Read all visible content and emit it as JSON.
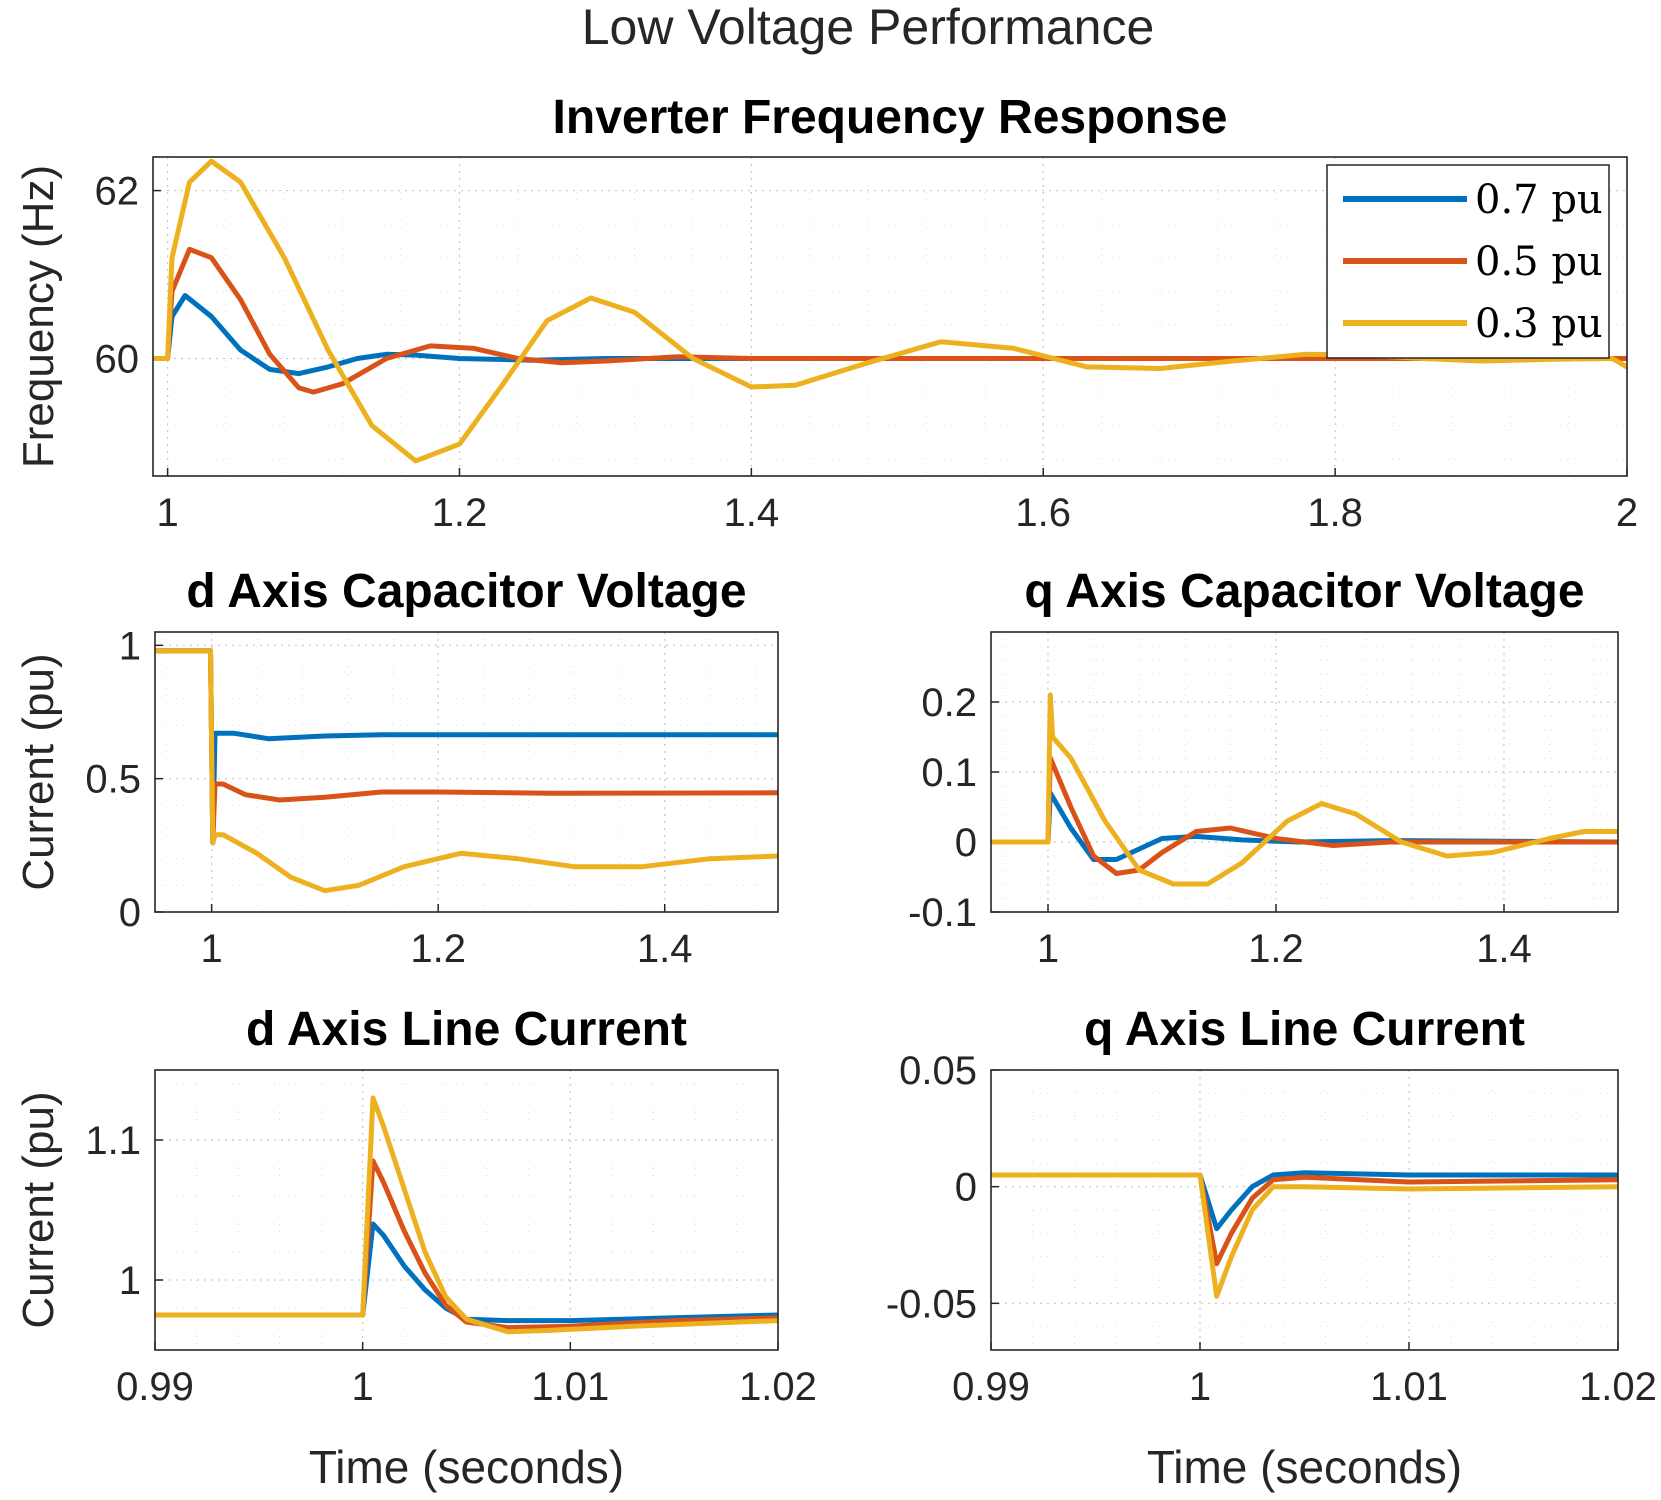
{
  "figure_title": "Low Voltage Performance",
  "colors": {
    "blue": "#0072BD",
    "orange": "#D95319",
    "yellow": "#EDB120"
  },
  "chart_data": [
    {
      "id": "freq",
      "type": "line",
      "title": "Inverter Frequency Response",
      "xlabel": "",
      "ylabel": "Frequency (Hz)",
      "xlim": [
        0.99,
        2.0
      ],
      "ylim": [
        58.6,
        62.4
      ],
      "xticks": [
        1,
        1.2,
        1.4,
        1.6,
        1.8,
        2
      ],
      "xtick_labels": [
        "1",
        "1.2",
        "1.4",
        "1.6",
        "1.8",
        "2"
      ],
      "yticks": [
        60,
        62
      ],
      "ytick_labels": [
        "60",
        "62"
      ],
      "legend": {
        "position": "top-right",
        "entries": [
          "0.7 pu",
          "0.5 pu",
          "0.3 pu"
        ]
      },
      "series": [
        {
          "name": "0.7 pu",
          "color": "blue",
          "points": [
            [
              0.99,
              60.0
            ],
            [
              1.0,
              60.0
            ],
            [
              1.003,
              60.5
            ],
            [
              1.012,
              60.75
            ],
            [
              1.03,
              60.5
            ],
            [
              1.05,
              60.1
            ],
            [
              1.07,
              59.87
            ],
            [
              1.09,
              59.82
            ],
            [
              1.11,
              59.9
            ],
            [
              1.13,
              60.0
            ],
            [
              1.15,
              60.05
            ],
            [
              1.17,
              60.04
            ],
            [
              1.2,
              60.0
            ],
            [
              1.25,
              59.98
            ],
            [
              1.3,
              60.0
            ],
            [
              1.4,
              60.0
            ],
            [
              2.0,
              60.0
            ]
          ]
        },
        {
          "name": "0.5 pu",
          "color": "orange",
          "points": [
            [
              0.99,
              60.0
            ],
            [
              1.0,
              60.0
            ],
            [
              1.003,
              60.8
            ],
            [
              1.015,
              61.3
            ],
            [
              1.03,
              61.2
            ],
            [
              1.05,
              60.7
            ],
            [
              1.07,
              60.05
            ],
            [
              1.09,
              59.65
            ],
            [
              1.1,
              59.6
            ],
            [
              1.12,
              59.7
            ],
            [
              1.15,
              60.0
            ],
            [
              1.18,
              60.15
            ],
            [
              1.21,
              60.12
            ],
            [
              1.24,
              60.0
            ],
            [
              1.27,
              59.95
            ],
            [
              1.3,
              59.97
            ],
            [
              1.35,
              60.02
            ],
            [
              1.4,
              60.0
            ],
            [
              2.0,
              60.0
            ]
          ]
        },
        {
          "name": "0.3 pu",
          "color": "yellow",
          "points": [
            [
              0.99,
              60.0
            ],
            [
              1.0,
              60.0
            ],
            [
              1.003,
              61.2
            ],
            [
              1.015,
              62.1
            ],
            [
              1.03,
              62.35
            ],
            [
              1.05,
              62.1
            ],
            [
              1.08,
              61.2
            ],
            [
              1.11,
              60.1
            ],
            [
              1.14,
              59.2
            ],
            [
              1.17,
              58.78
            ],
            [
              1.2,
              58.98
            ],
            [
              1.23,
              59.7
            ],
            [
              1.26,
              60.45
            ],
            [
              1.29,
              60.72
            ],
            [
              1.32,
              60.55
            ],
            [
              1.36,
              60.0
            ],
            [
              1.4,
              59.66
            ],
            [
              1.43,
              59.68
            ],
            [
              1.48,
              59.95
            ],
            [
              1.53,
              60.2
            ],
            [
              1.58,
              60.12
            ],
            [
              1.63,
              59.9
            ],
            [
              1.68,
              59.88
            ],
            [
              1.73,
              59.97
            ],
            [
              1.78,
              60.05
            ],
            [
              1.82,
              60.04
            ],
            [
              1.86,
              60.0
            ],
            [
              1.9,
              59.97
            ],
            [
              1.95,
              59.99
            ],
            [
              1.99,
              60.0
            ],
            [
              2.0,
              59.9
            ]
          ]
        }
      ]
    },
    {
      "id": "vcd",
      "type": "line",
      "title": "d Axis Capacitor Voltage",
      "xlabel": "",
      "ylabel": "Current (pu)",
      "xlim": [
        0.95,
        1.5
      ],
      "ylim": [
        0,
        1.05
      ],
      "xticks": [
        1,
        1.2,
        1.4
      ],
      "xtick_labels": [
        "1",
        "1.2",
        "1.4"
      ],
      "yticks": [
        0,
        0.5,
        1
      ],
      "ytick_labels": [
        "0",
        "0.5",
        "1"
      ],
      "series": [
        {
          "name": "0.7 pu",
          "color": "blue",
          "points": [
            [
              0.95,
              0.98
            ],
            [
              0.999,
              0.98
            ],
            [
              1.001,
              0.26
            ],
            [
              1.003,
              0.67
            ],
            [
              1.02,
              0.67
            ],
            [
              1.05,
              0.65
            ],
            [
              1.1,
              0.66
            ],
            [
              1.15,
              0.665
            ],
            [
              1.2,
              0.665
            ],
            [
              1.5,
              0.665
            ]
          ]
        },
        {
          "name": "0.5 pu",
          "color": "orange",
          "points": [
            [
              0.95,
              0.98
            ],
            [
              0.999,
              0.98
            ],
            [
              1.001,
              0.26
            ],
            [
              1.003,
              0.48
            ],
            [
              1.01,
              0.48
            ],
            [
              1.03,
              0.44
            ],
            [
              1.06,
              0.42
            ],
            [
              1.1,
              0.43
            ],
            [
              1.15,
              0.45
            ],
            [
              1.2,
              0.45
            ],
            [
              1.3,
              0.445
            ],
            [
              1.5,
              0.447
            ]
          ]
        },
        {
          "name": "0.3 pu",
          "color": "yellow",
          "points": [
            [
              0.95,
              0.98
            ],
            [
              0.999,
              0.98
            ],
            [
              1.001,
              0.26
            ],
            [
              1.003,
              0.29
            ],
            [
              1.01,
              0.29
            ],
            [
              1.04,
              0.22
            ],
            [
              1.07,
              0.13
            ],
            [
              1.1,
              0.08
            ],
            [
              1.13,
              0.1
            ],
            [
              1.17,
              0.17
            ],
            [
              1.22,
              0.22
            ],
            [
              1.27,
              0.2
            ],
            [
              1.32,
              0.17
            ],
            [
              1.38,
              0.17
            ],
            [
              1.44,
              0.2
            ],
            [
              1.5,
              0.21
            ]
          ]
        }
      ]
    },
    {
      "id": "vcq",
      "type": "line",
      "title": "q Axis Capacitor Voltage",
      "xlabel": "",
      "ylabel": "",
      "xlim": [
        0.95,
        1.5
      ],
      "ylim": [
        -0.1,
        0.3
      ],
      "xticks": [
        1,
        1.2,
        1.4
      ],
      "xtick_labels": [
        "1",
        "1.2",
        "1.4"
      ],
      "yticks": [
        -0.1,
        0,
        0.1,
        0.2
      ],
      "ytick_labels": [
        "-0.1",
        "0",
        "0.1",
        "0.2"
      ],
      "series": [
        {
          "name": "0.7 pu",
          "color": "blue",
          "points": [
            [
              0.95,
              0.0
            ],
            [
              1.0,
              0.0
            ],
            [
              1.002,
              0.07
            ],
            [
              1.02,
              0.02
            ],
            [
              1.04,
              -0.025
            ],
            [
              1.06,
              -0.025
            ],
            [
              1.08,
              -0.01
            ],
            [
              1.1,
              0.005
            ],
            [
              1.13,
              0.008
            ],
            [
              1.17,
              0.003
            ],
            [
              1.22,
              0.0
            ],
            [
              1.3,
              0.002
            ],
            [
              1.5,
              0.0
            ]
          ]
        },
        {
          "name": "0.5 pu",
          "color": "orange",
          "points": [
            [
              0.95,
              0.0
            ],
            [
              1.0,
              0.0
            ],
            [
              1.002,
              0.12
            ],
            [
              1.02,
              0.05
            ],
            [
              1.04,
              -0.02
            ],
            [
              1.06,
              -0.045
            ],
            [
              1.08,
              -0.04
            ],
            [
              1.1,
              -0.015
            ],
            [
              1.13,
              0.015
            ],
            [
              1.16,
              0.02
            ],
            [
              1.2,
              0.005
            ],
            [
              1.25,
              -0.005
            ],
            [
              1.3,
              0.0
            ],
            [
              1.5,
              0.0
            ]
          ]
        },
        {
          "name": "0.3 pu",
          "color": "yellow",
          "points": [
            [
              0.95,
              0.0
            ],
            [
              1.0,
              0.0
            ],
            [
              1.002,
              0.21
            ],
            [
              1.004,
              0.15
            ],
            [
              1.02,
              0.12
            ],
            [
              1.05,
              0.03
            ],
            [
              1.08,
              -0.04
            ],
            [
              1.11,
              -0.06
            ],
            [
              1.14,
              -0.06
            ],
            [
              1.17,
              -0.03
            ],
            [
              1.21,
              0.03
            ],
            [
              1.24,
              0.055
            ],
            [
              1.27,
              0.04
            ],
            [
              1.31,
              0.0
            ],
            [
              1.35,
              -0.02
            ],
            [
              1.39,
              -0.015
            ],
            [
              1.44,
              0.005
            ],
            [
              1.47,
              0.015
            ],
            [
              1.5,
              0.015
            ]
          ]
        }
      ]
    },
    {
      "id": "iod",
      "type": "line",
      "title": "d Axis Line Current",
      "xlabel": "Time (seconds)",
      "ylabel": "Current (pu)",
      "xlim": [
        0.99,
        1.02
      ],
      "ylim": [
        0.95,
        1.15
      ],
      "xticks": [
        0.99,
        1,
        1.01,
        1.02
      ],
      "xtick_labels": [
        "0.99",
        "1",
        "1.01",
        "1.02"
      ],
      "yticks": [
        1,
        1.1
      ],
      "ytick_labels": [
        "1",
        "1.1"
      ],
      "series": [
        {
          "name": "0.7 pu",
          "color": "blue",
          "points": [
            [
              0.99,
              0.975
            ],
            [
              1.0,
              0.975
            ],
            [
              1.0005,
              1.04
            ],
            [
              1.001,
              1.032
            ],
            [
              1.002,
              1.01
            ],
            [
              1.003,
              0.993
            ],
            [
              1.004,
              0.98
            ],
            [
              1.005,
              0.972
            ],
            [
              1.007,
              0.971
            ],
            [
              1.01,
              0.971
            ],
            [
              1.015,
              0.973
            ],
            [
              1.02,
              0.975
            ]
          ]
        },
        {
          "name": "0.5 pu",
          "color": "orange",
          "points": [
            [
              0.99,
              0.975
            ],
            [
              1.0,
              0.975
            ],
            [
              1.0005,
              1.085
            ],
            [
              1.001,
              1.07
            ],
            [
              1.002,
              1.035
            ],
            [
              1.003,
              1.005
            ],
            [
              1.004,
              0.982
            ],
            [
              1.005,
              0.97
            ],
            [
              1.007,
              0.966
            ],
            [
              1.01,
              0.967
            ],
            [
              1.015,
              0.971
            ],
            [
              1.02,
              0.973
            ]
          ]
        },
        {
          "name": "0.3 pu",
          "color": "yellow",
          "points": [
            [
              0.99,
              0.975
            ],
            [
              1.0,
              0.975
            ],
            [
              1.0005,
              1.13
            ],
            [
              1.001,
              1.11
            ],
            [
              1.002,
              1.065
            ],
            [
              1.003,
              1.02
            ],
            [
              1.004,
              0.988
            ],
            [
              1.005,
              0.972
            ],
            [
              1.007,
              0.963
            ],
            [
              1.009,
              0.964
            ],
            [
              1.013,
              0.967
            ],
            [
              1.02,
              0.971
            ]
          ]
        }
      ]
    },
    {
      "id": "ioq",
      "type": "line",
      "title": "q Axis Line Current",
      "xlabel": "Time (seconds)",
      "ylabel": "",
      "xlim": [
        0.99,
        1.02
      ],
      "ylim": [
        -0.07,
        0.05
      ],
      "xticks": [
        0.99,
        1,
        1.01,
        1.02
      ],
      "xtick_labels": [
        "0.99",
        "1",
        "1.01",
        "1.02"
      ],
      "yticks": [
        -0.05,
        0,
        0.05
      ],
      "ytick_labels": [
        "-0.05",
        "0",
        "0.05"
      ],
      "series": [
        {
          "name": "0.7 pu",
          "color": "blue",
          "points": [
            [
              0.99,
              0.005
            ],
            [
              1.0,
              0.005
            ],
            [
              1.0008,
              -0.018
            ],
            [
              1.0015,
              -0.01
            ],
            [
              1.0025,
              0.0
            ],
            [
              1.0035,
              0.005
            ],
            [
              1.005,
              0.006
            ],
            [
              1.01,
              0.005
            ],
            [
              1.02,
              0.005
            ]
          ]
        },
        {
          "name": "0.5 pu",
          "color": "orange",
          "points": [
            [
              0.99,
              0.005
            ],
            [
              1.0,
              0.005
            ],
            [
              1.0008,
              -0.033
            ],
            [
              1.0015,
              -0.02
            ],
            [
              1.0025,
              -0.005
            ],
            [
              1.0035,
              0.003
            ],
            [
              1.005,
              0.004
            ],
            [
              1.01,
              0.002
            ],
            [
              1.02,
              0.003
            ]
          ]
        },
        {
          "name": "0.3 pu",
          "color": "yellow",
          "points": [
            [
              0.99,
              0.005
            ],
            [
              1.0,
              0.005
            ],
            [
              1.0008,
              -0.047
            ],
            [
              1.0015,
              -0.03
            ],
            [
              1.0025,
              -0.01
            ],
            [
              1.0035,
              0.0
            ],
            [
              1.005,
              0.0
            ],
            [
              1.01,
              -0.001
            ],
            [
              1.02,
              0.0
            ]
          ]
        }
      ]
    }
  ]
}
